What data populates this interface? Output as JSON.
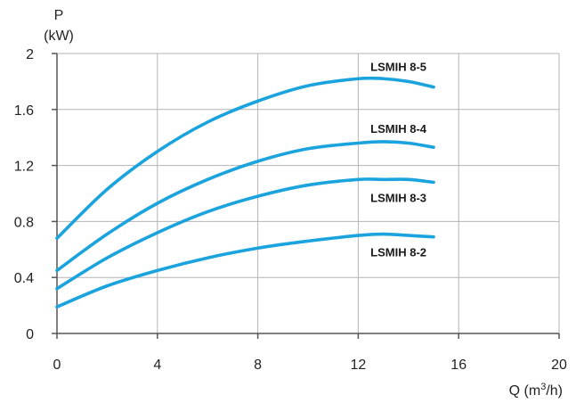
{
  "chart_data": {
    "type": "line",
    "y_axis_title_line1": "P",
    "y_axis_title_line2": "(kW)",
    "x_axis_title": "Q (m",
    "x_axis_title_sup": "3",
    "x_axis_title_end": "/h)",
    "xlim": [
      0,
      20
    ],
    "ylim": [
      0,
      2
    ],
    "x_ticks": [
      "0",
      "4",
      "8",
      "12",
      "16",
      "20"
    ],
    "y_ticks": [
      "0",
      "0.4",
      "0.8",
      "1.2",
      "1.6",
      "2"
    ],
    "grid": true,
    "series_color": "#1aa3dd",
    "series": [
      {
        "name": "LSMIH 8-5",
        "x": [
          0,
          2,
          4,
          6,
          8,
          10,
          12,
          13,
          14,
          15
        ],
        "y": [
          0.68,
          1.03,
          1.3,
          1.51,
          1.66,
          1.77,
          1.82,
          1.82,
          1.8,
          1.76
        ]
      },
      {
        "name": "LSMIH 8-4",
        "x": [
          0,
          2,
          4,
          6,
          8,
          10,
          12,
          13,
          14,
          15
        ],
        "y": [
          0.45,
          0.71,
          0.93,
          1.1,
          1.23,
          1.32,
          1.36,
          1.37,
          1.36,
          1.33
        ]
      },
      {
        "name": "LSMIH 8-3",
        "x": [
          0,
          2,
          4,
          6,
          8,
          10,
          12,
          13,
          14,
          15
        ],
        "y": [
          0.32,
          0.54,
          0.72,
          0.87,
          0.98,
          1.06,
          1.1,
          1.1,
          1.1,
          1.08
        ]
      },
      {
        "name": "LSMIH 8-2",
        "x": [
          0,
          2,
          4,
          6,
          8,
          10,
          12,
          13,
          14,
          15
        ],
        "y": [
          0.19,
          0.34,
          0.45,
          0.54,
          0.61,
          0.66,
          0.7,
          0.71,
          0.7,
          0.69
        ]
      }
    ]
  }
}
